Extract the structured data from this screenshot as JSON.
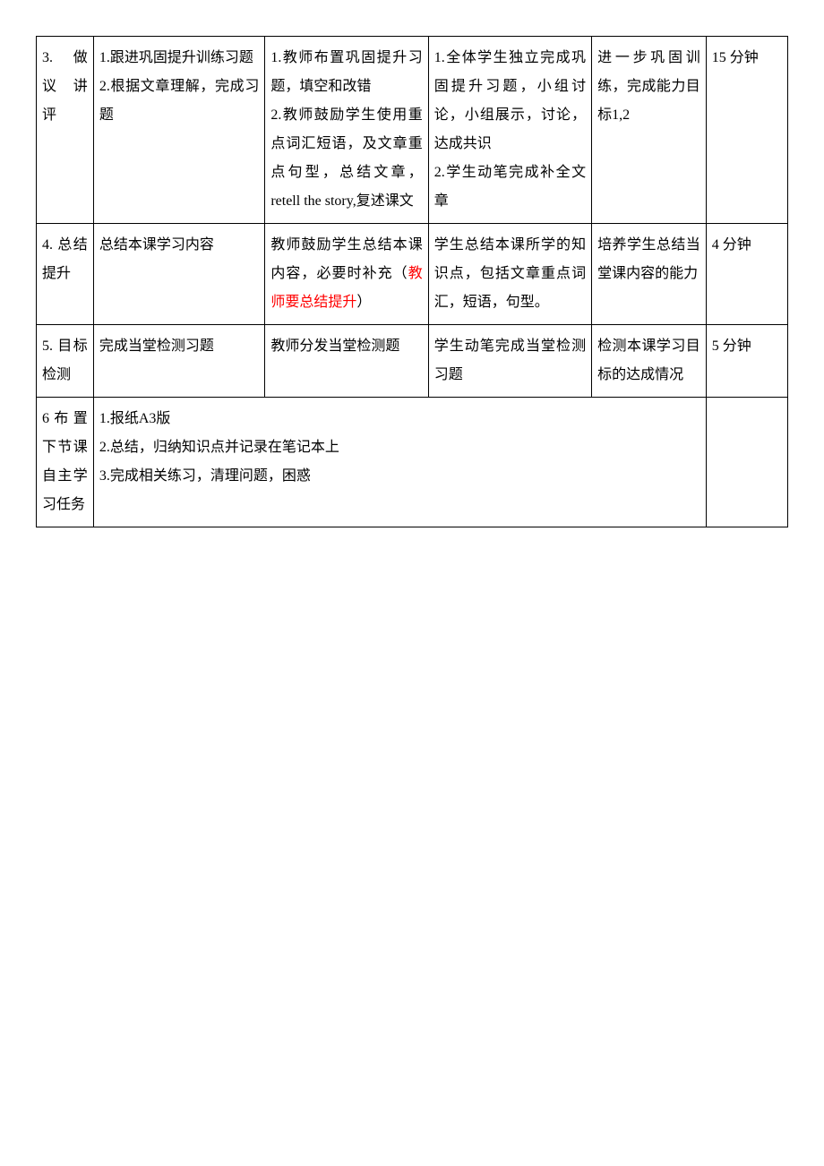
{
  "text_color": "#000000",
  "highlight_color": "#ff0000",
  "border_color": "#000000",
  "background_color": "#ffffff",
  "font_family": "SimSun",
  "font_size_pt": 12,
  "line_height": 2.0,
  "table": {
    "column_widths_pct": [
      7,
      21,
      20,
      20,
      14,
      10
    ],
    "rows": [
      {
        "cells": [
          {
            "text": "3. 做 议 讲评"
          },
          {
            "text": "1.跟进巩固提升训练习题\n2.根据文章理解，完成习题"
          },
          {
            "text": "1.教师布置巩固提升习题，填空和改错\n2.教师鼓励学生使用重点词汇短语，及文章重点句型，总结文章， retell the story,复述课文"
          },
          {
            "text": "1.全体学生独立完成巩固提升习题，小组讨论，小组展示，讨论，达成共识\n2.学生动笔完成补全文章"
          },
          {
            "text": "进一步巩固训练，完成能力目标1,2"
          },
          {
            "text": "15 分钟"
          }
        ]
      },
      {
        "cells": [
          {
            "text": "4. 总结提升"
          },
          {
            "text": "总结本课学习内容"
          },
          {
            "text_parts": [
              {
                "t": "教师鼓励学生总结本课内容，必要时补充（"
              },
              {
                "t": "教师要总结提升",
                "red": true
              },
              {
                "t": "）"
              }
            ]
          },
          {
            "text": "学生总结本课所学的知识点，包括文章重点词汇，短语，句型。"
          },
          {
            "text": "培养学生总结当堂课内容的能力"
          },
          {
            "text": "4 分钟"
          }
        ]
      },
      {
        "cells": [
          {
            "text": "5. 目标检测"
          },
          {
            "text": "完成当堂检测习题"
          },
          {
            "text": "教师分发当堂检测题"
          },
          {
            "text": "学生动笔完成当堂检测习题"
          },
          {
            "text": "检测本课学习目标的达成情况"
          },
          {
            "text": "5 分钟"
          }
        ]
      },
      {
        "cells": [
          {
            "text": "6布置下节课自主学习任务"
          },
          {
            "text": "1.报纸A3版\n2.总结，归纳知识点并记录在笔记本上\n3.完成相关练习，清理问题，困惑",
            "colspan": 4
          },
          {
            "text": ""
          }
        ]
      }
    ]
  }
}
